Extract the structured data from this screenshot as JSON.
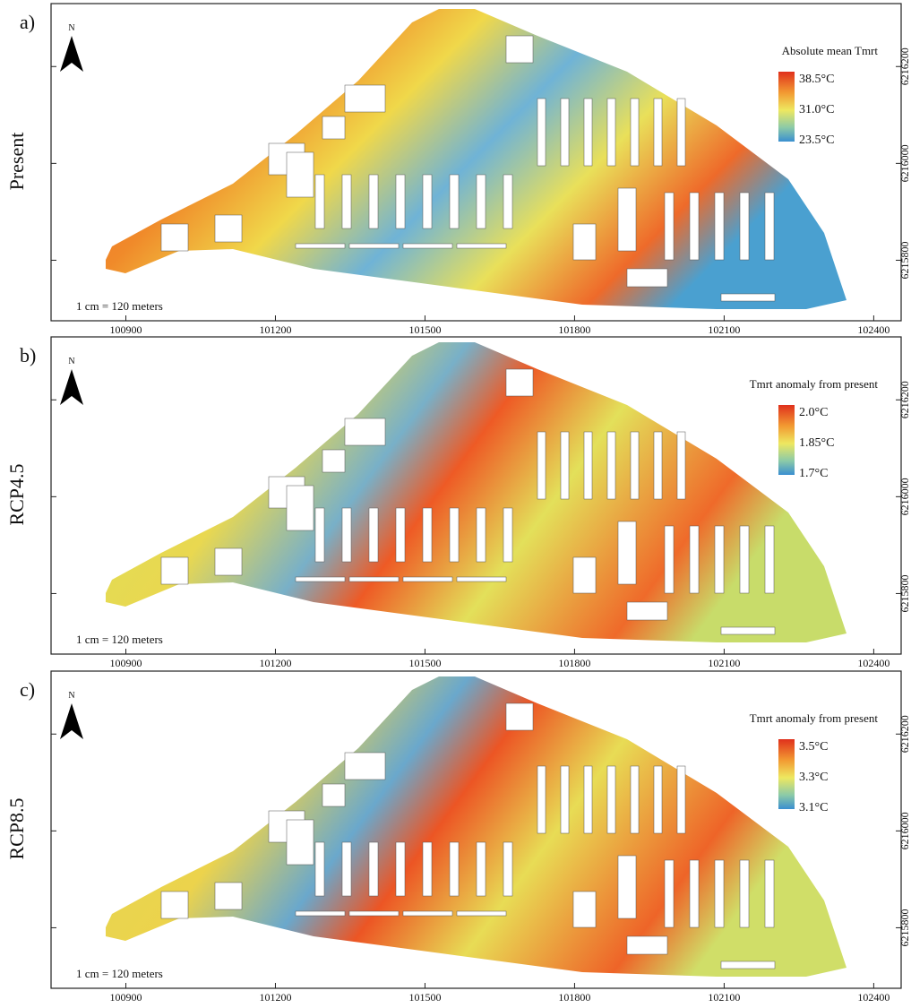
{
  "north": "N",
  "panels": [
    {
      "label": "a)",
      "scenario": "Present",
      "legend": {
        "title": "Absolute mean Tmrt",
        "labels": [
          "38.5°C",
          "31.0°C",
          "23.5°C"
        ]
      },
      "scale": "1 cm = 120 meters"
    },
    {
      "label": "b)",
      "scenario": "RCP4.5",
      "legend": {
        "title": "Tmrt anomaly from present",
        "labels": [
          "2.0°C",
          "1.85°C",
          "1.7°C"
        ]
      },
      "scale": "1 cm = 120 meters"
    },
    {
      "label": "c)",
      "scenario": "RCP8.5",
      "legend": {
        "title": "Tmrt anomaly from present",
        "labels": [
          "3.5°C",
          "3.3°C",
          "3.1°C"
        ]
      },
      "scale": "1 cm = 120 meters"
    }
  ],
  "xlim": [
    100750,
    102455
  ],
  "ylim": [
    6215675,
    6216330
  ],
  "xticks": [
    100900,
    101200,
    101500,
    101800,
    102100,
    102400
  ],
  "yticks": [
    6215800,
    6216000,
    6216200
  ]
}
